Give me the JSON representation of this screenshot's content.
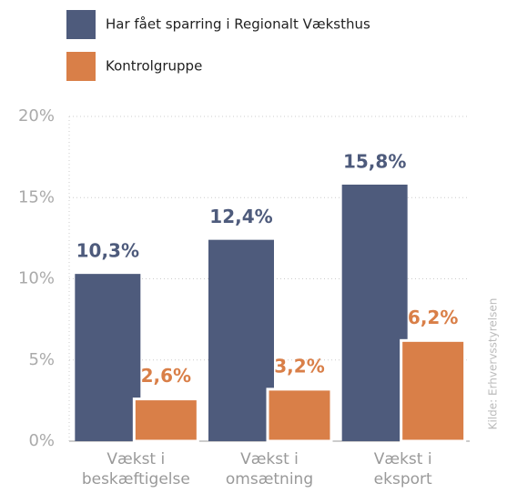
{
  "chart_data": {
    "type": "bar",
    "categories": [
      [
        "Vækst i",
        "beskæftigelse"
      ],
      [
        "Vækst i",
        "omsætning"
      ],
      [
        "Vækst i",
        "eksport"
      ]
    ],
    "series": [
      {
        "name": "Har fået sparring i Regionalt Væksthus",
        "color": "#4e5b7c",
        "values": [
          10.3,
          12.4,
          15.8
        ],
        "value_labels": [
          "10,3%",
          "12,4%",
          "15,8%"
        ]
      },
      {
        "name": "Kontrolgruppe",
        "color": "#d97f48",
        "values": [
          2.6,
          3.2,
          6.2
        ],
        "value_labels": [
          "2,6%",
          "3,2%",
          "6,2%"
        ]
      }
    ],
    "ylim": [
      0,
      20
    ],
    "yticks": [
      {
        "value": 0,
        "label": "0%"
      },
      {
        "value": 5,
        "label": "5%"
      },
      {
        "value": 10,
        "label": "10%"
      },
      {
        "value": 15,
        "label": "15%"
      },
      {
        "value": 20,
        "label": "20%"
      }
    ],
    "grid": true,
    "source": "Kilde: Erhvervsstyrelsen"
  }
}
